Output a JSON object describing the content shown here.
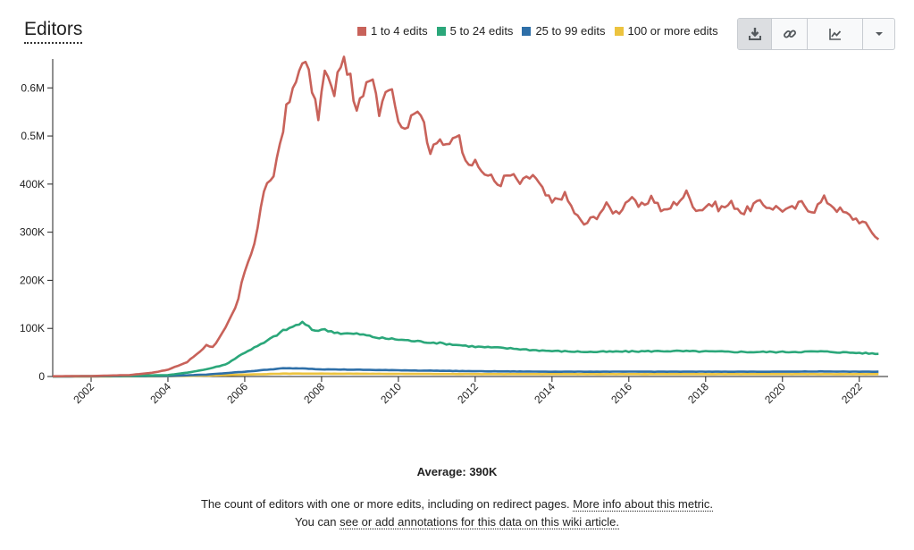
{
  "header": {
    "title": "Editors"
  },
  "toolbar": {
    "buttons": [
      {
        "name": "download-icon"
      },
      {
        "name": "link-icon"
      },
      {
        "name": "chart-type-icon"
      },
      {
        "name": "chevron-down-icon"
      }
    ]
  },
  "footer": {
    "average": "Average: 390K",
    "desc_text": "The count of editors with one or more edits, including on redirect pages.",
    "desc_link": "More info about this metric.",
    "annot_prefix": "You can",
    "annot_link": "see or add annotations for this data on this wiki article."
  },
  "chart_data": {
    "type": "line",
    "x_start": "2001-01",
    "x_interval": "monthly",
    "xlim": [
      2001.0,
      2022.75
    ],
    "ylim": [
      0,
      660000
    ],
    "y_ticks": [
      {
        "value": 0,
        "label": "0"
      },
      {
        "value": 100000,
        "label": "100K"
      },
      {
        "value": 200000,
        "label": "200K"
      },
      {
        "value": 300000,
        "label": "300K"
      },
      {
        "value": 400000,
        "label": "400K"
      },
      {
        "value": 500000,
        "label": "0.5M"
      },
      {
        "value": 600000,
        "label": "0.6M"
      }
    ],
    "x_ticks": [
      "2002",
      "2004",
      "2006",
      "2008",
      "2010",
      "2012",
      "2014",
      "2016",
      "2018",
      "2020",
      "2022"
    ],
    "grid": false,
    "legend_position": "top-right",
    "series": [
      {
        "name": "1 to 4 edits",
        "color": "#c8625a",
        "keyframes": [
          [
            2001.0,
            500
          ],
          [
            2002.0,
            1000
          ],
          [
            2003.0,
            3000
          ],
          [
            2003.6,
            8000
          ],
          [
            2004.0,
            14000
          ],
          [
            2004.5,
            30000
          ],
          [
            2004.8,
            50000
          ],
          [
            2005.0,
            65000
          ],
          [
            2005.2,
            62000
          ],
          [
            2005.5,
            100000
          ],
          [
            2005.8,
            150000
          ],
          [
            2006.0,
            220000
          ],
          [
            2006.3,
            290000
          ],
          [
            2006.5,
            390000
          ],
          [
            2006.7,
            400000
          ],
          [
            2006.9,
            480000
          ],
          [
            2007.1,
            560000
          ],
          [
            2007.3,
            600000
          ],
          [
            2007.5,
            665000
          ],
          [
            2007.7,
            620000
          ],
          [
            2007.9,
            535000
          ],
          [
            2008.1,
            640000
          ],
          [
            2008.3,
            580000
          ],
          [
            2008.5,
            655000
          ],
          [
            2008.7,
            640000
          ],
          [
            2008.9,
            540000
          ],
          [
            2009.1,
            600000
          ],
          [
            2009.3,
            640000
          ],
          [
            2009.5,
            555000
          ],
          [
            2009.7,
            610000
          ],
          [
            2009.9,
            580000
          ],
          [
            2010.1,
            500000
          ],
          [
            2010.4,
            560000
          ],
          [
            2010.6,
            545000
          ],
          [
            2010.8,
            460000
          ],
          [
            2011.0,
            490000
          ],
          [
            2011.2,
            475000
          ],
          [
            2011.5,
            510000
          ],
          [
            2011.8,
            450000
          ],
          [
            2012.0,
            440000
          ],
          [
            2012.3,
            420000
          ],
          [
            2012.6,
            400000
          ],
          [
            2012.9,
            420000
          ],
          [
            2013.2,
            400000
          ],
          [
            2013.5,
            420000
          ],
          [
            2013.8,
            380000
          ],
          [
            2014.0,
            360000
          ],
          [
            2014.3,
            380000
          ],
          [
            2014.6,
            340000
          ],
          [
            2014.8,
            315000
          ],
          [
            2015.1,
            330000
          ],
          [
            2015.4,
            355000
          ],
          [
            2015.7,
            340000
          ],
          [
            2016.0,
            370000
          ],
          [
            2016.3,
            350000
          ],
          [
            2016.6,
            375000
          ],
          [
            2016.9,
            340000
          ],
          [
            2017.2,
            360000
          ],
          [
            2017.5,
            380000
          ],
          [
            2017.8,
            345000
          ],
          [
            2018.1,
            360000
          ],
          [
            2018.4,
            350000
          ],
          [
            2018.7,
            360000
          ],
          [
            2019.0,
            340000
          ],
          [
            2019.3,
            360000
          ],
          [
            2019.6,
            355000
          ],
          [
            2019.9,
            350000
          ],
          [
            2020.2,
            345000
          ],
          [
            2020.5,
            360000
          ],
          [
            2020.8,
            345000
          ],
          [
            2021.1,
            370000
          ],
          [
            2021.4,
            350000
          ],
          [
            2021.7,
            335000
          ],
          [
            2022.0,
            325000
          ],
          [
            2022.3,
            305000
          ],
          [
            2022.5,
            285000
          ]
        ]
      },
      {
        "name": "5 to 24 edits",
        "color": "#2ba77a",
        "keyframes": [
          [
            2001.0,
            200
          ],
          [
            2003.0,
            1500
          ],
          [
            2004.0,
            3000
          ],
          [
            2004.5,
            8000
          ],
          [
            2005.0,
            15000
          ],
          [
            2005.5,
            25000
          ],
          [
            2006.0,
            50000
          ],
          [
            2006.5,
            70000
          ],
          [
            2007.0,
            95000
          ],
          [
            2007.5,
            112000
          ],
          [
            2007.8,
            95000
          ],
          [
            2008.0,
            98000
          ],
          [
            2008.5,
            90000
          ],
          [
            2009.0,
            88000
          ],
          [
            2009.5,
            80000
          ],
          [
            2010.0,
            77000
          ],
          [
            2010.5,
            73000
          ],
          [
            2011.0,
            70000
          ],
          [
            2011.5,
            66000
          ],
          [
            2012.0,
            62000
          ],
          [
            2012.5,
            60000
          ],
          [
            2013.0,
            58000
          ],
          [
            2013.5,
            55000
          ],
          [
            2014.0,
            53000
          ],
          [
            2014.5,
            52000
          ],
          [
            2015.0,
            51000
          ],
          [
            2016.0,
            52000
          ],
          [
            2017.0,
            53000
          ],
          [
            2018.0,
            52000
          ],
          [
            2019.0,
            51000
          ],
          [
            2020.0,
            51000
          ],
          [
            2021.0,
            52000
          ],
          [
            2022.0,
            49000
          ],
          [
            2022.5,
            47000
          ]
        ]
      },
      {
        "name": "25 to 99 edits",
        "color": "#2e6fa8",
        "keyframes": [
          [
            2001.0,
            100
          ],
          [
            2004.0,
            1000
          ],
          [
            2005.0,
            4000
          ],
          [
            2006.0,
            10000
          ],
          [
            2007.0,
            17000
          ],
          [
            2007.5,
            17000
          ],
          [
            2008.0,
            15000
          ],
          [
            2009.0,
            14000
          ],
          [
            2010.0,
            13000
          ],
          [
            2011.0,
            12000
          ],
          [
            2012.0,
            11000
          ],
          [
            2013.0,
            10500
          ],
          [
            2014.0,
            10000
          ],
          [
            2016.0,
            10000
          ],
          [
            2018.0,
            10000
          ],
          [
            2020.0,
            10000
          ],
          [
            2021.0,
            10500
          ],
          [
            2022.0,
            10000
          ],
          [
            2022.5,
            10000
          ]
        ]
      },
      {
        "name": "100 or more edits",
        "color": "#ecc33f",
        "keyframes": [
          [
            2001.0,
            50
          ],
          [
            2004.0,
            500
          ],
          [
            2005.0,
            2000
          ],
          [
            2006.0,
            4000
          ],
          [
            2007.0,
            6000
          ],
          [
            2008.0,
            6000
          ],
          [
            2010.0,
            5500
          ],
          [
            2012.0,
            5000
          ],
          [
            2014.0,
            5000
          ],
          [
            2016.0,
            5000
          ],
          [
            2018.0,
            5000
          ],
          [
            2020.0,
            5000
          ],
          [
            2022.0,
            5000
          ],
          [
            2022.5,
            5000
          ]
        ]
      }
    ]
  }
}
